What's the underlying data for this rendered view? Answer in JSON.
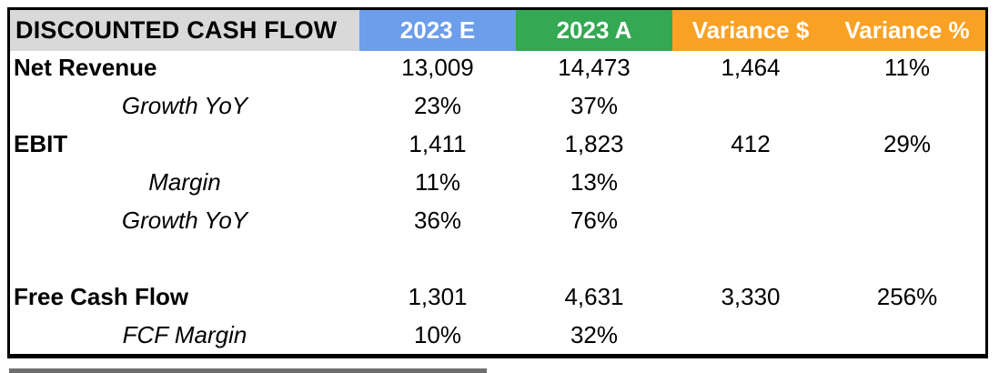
{
  "table": {
    "title": "DISCOUNTED CASH FLOW",
    "header": {
      "columns": [
        {
          "label": "2023 E",
          "bg": "#6d9eeb"
        },
        {
          "label": "2023 A",
          "bg": "#34a853"
        },
        {
          "label": "Variance $",
          "bg": "#f9a125"
        },
        {
          "label": "Variance %",
          "bg": "#f9a125"
        }
      ]
    },
    "rows": [
      {
        "label": "Net Revenue",
        "style": "bold",
        "values": [
          "13,009",
          "14,473",
          "1,464",
          "11%"
        ]
      },
      {
        "label": "Growth YoY",
        "style": "italic",
        "values": [
          "23%",
          "37%",
          "",
          ""
        ]
      },
      {
        "label": "EBIT",
        "style": "bold",
        "values": [
          "1,411",
          "1,823",
          "412",
          "29%"
        ]
      },
      {
        "label": "Margin",
        "style": "italic",
        "values": [
          "11%",
          "13%",
          "",
          ""
        ]
      },
      {
        "label": "Growth YoY",
        "style": "italic",
        "values": [
          "36%",
          "76%",
          "",
          ""
        ]
      },
      {
        "label": "",
        "style": "blank",
        "values": [
          "",
          "",
          "",
          ""
        ]
      },
      {
        "label": "Free Cash Flow",
        "style": "bold",
        "values": [
          "1,301",
          "4,631",
          "3,330",
          "256%"
        ]
      },
      {
        "label": "FCF Margin",
        "style": "italic",
        "values": [
          "10%",
          "32%",
          "",
          ""
        ]
      }
    ]
  },
  "colors": {
    "title_header_bg": "#d9d9d9",
    "estimate_header_bg": "#6d9eeb",
    "actual_header_bg": "#34a853",
    "variance_header_bg": "#f9a125",
    "header_text": "#ffffff",
    "body_text": "#000000",
    "border": "#000000"
  },
  "chart_data": {
    "type": "table",
    "title": "DISCOUNTED CASH FLOW",
    "columns": [
      "",
      "2023 E",
      "2023 A",
      "Variance $",
      "Variance %"
    ],
    "rows": [
      [
        "Net Revenue",
        "13,009",
        "14,473",
        "1,464",
        "11%"
      ],
      [
        "Growth YoY",
        "23%",
        "37%",
        "",
        ""
      ],
      [
        "EBIT",
        "1,411",
        "1,823",
        "412",
        "29%"
      ],
      [
        "Margin",
        "11%",
        "13%",
        "",
        ""
      ],
      [
        "Growth YoY",
        "36%",
        "76%",
        "",
        ""
      ],
      [
        "",
        "",
        "",
        "",
        ""
      ],
      [
        "Free Cash Flow",
        "1,301",
        "4,631",
        "3,330",
        "256%"
      ],
      [
        "FCF Margin",
        "10%",
        "32%",
        "",
        ""
      ]
    ],
    "numeric": {
      "net_revenue": {
        "estimate": 13009,
        "actual": 14473,
        "variance_usd": 1464,
        "variance_pct": 0.11
      },
      "revenue_growth_yoy": {
        "estimate": 0.23,
        "actual": 0.37
      },
      "ebit": {
        "estimate": 1411,
        "actual": 1823,
        "variance_usd": 412,
        "variance_pct": 0.29
      },
      "ebit_margin": {
        "estimate": 0.11,
        "actual": 0.13
      },
      "ebit_growth_yoy": {
        "estimate": 0.36,
        "actual": 0.76
      },
      "free_cash_flow": {
        "estimate": 1301,
        "actual": 4631,
        "variance_usd": 3330,
        "variance_pct": 2.56
      },
      "fcf_margin": {
        "estimate": 0.1,
        "actual": 0.32
      }
    }
  }
}
